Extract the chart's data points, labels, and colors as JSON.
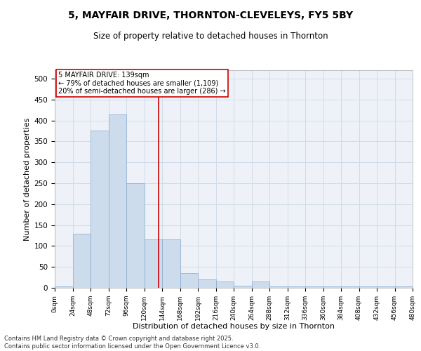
{
  "title_line1": "5, MAYFAIR DRIVE, THORNTON-CLEVELEYS, FY5 5BY",
  "title_line2": "Size of property relative to detached houses in Thornton",
  "xlabel": "Distribution of detached houses by size in Thornton",
  "ylabel": "Number of detached properties",
  "property_size": 139,
  "property_label": "5 MAYFAIR DRIVE: 139sqm",
  "annotation_line2": "← 79% of detached houses are smaller (1,109)",
  "annotation_line3": "20% of semi-detached houses are larger (286) →",
  "bar_color": "#ccdcec",
  "bar_edge_color": "#88aacc",
  "vline_color": "#cc0000",
  "annotation_box_color": "#cc0000",
  "grid_color": "#d0dce8",
  "background_color": "#eef2f8",
  "bin_edges": [
    0,
    24,
    48,
    72,
    96,
    120,
    144,
    168,
    192,
    216,
    240,
    264,
    288,
    312,
    336,
    360,
    384,
    408,
    432,
    456,
    480
  ],
  "bar_heights": [
    3,
    130,
    375,
    415,
    250,
    115,
    115,
    35,
    20,
    15,
    5,
    15,
    3,
    3,
    3,
    3,
    3,
    3,
    3,
    3
  ],
  "ylim": [
    0,
    520
  ],
  "yticks": [
    0,
    50,
    100,
    150,
    200,
    250,
    300,
    350,
    400,
    450,
    500
  ],
  "footnote": "Contains HM Land Registry data © Crown copyright and database right 2025.\nContains public sector information licensed under the Open Government Licence v3.0."
}
